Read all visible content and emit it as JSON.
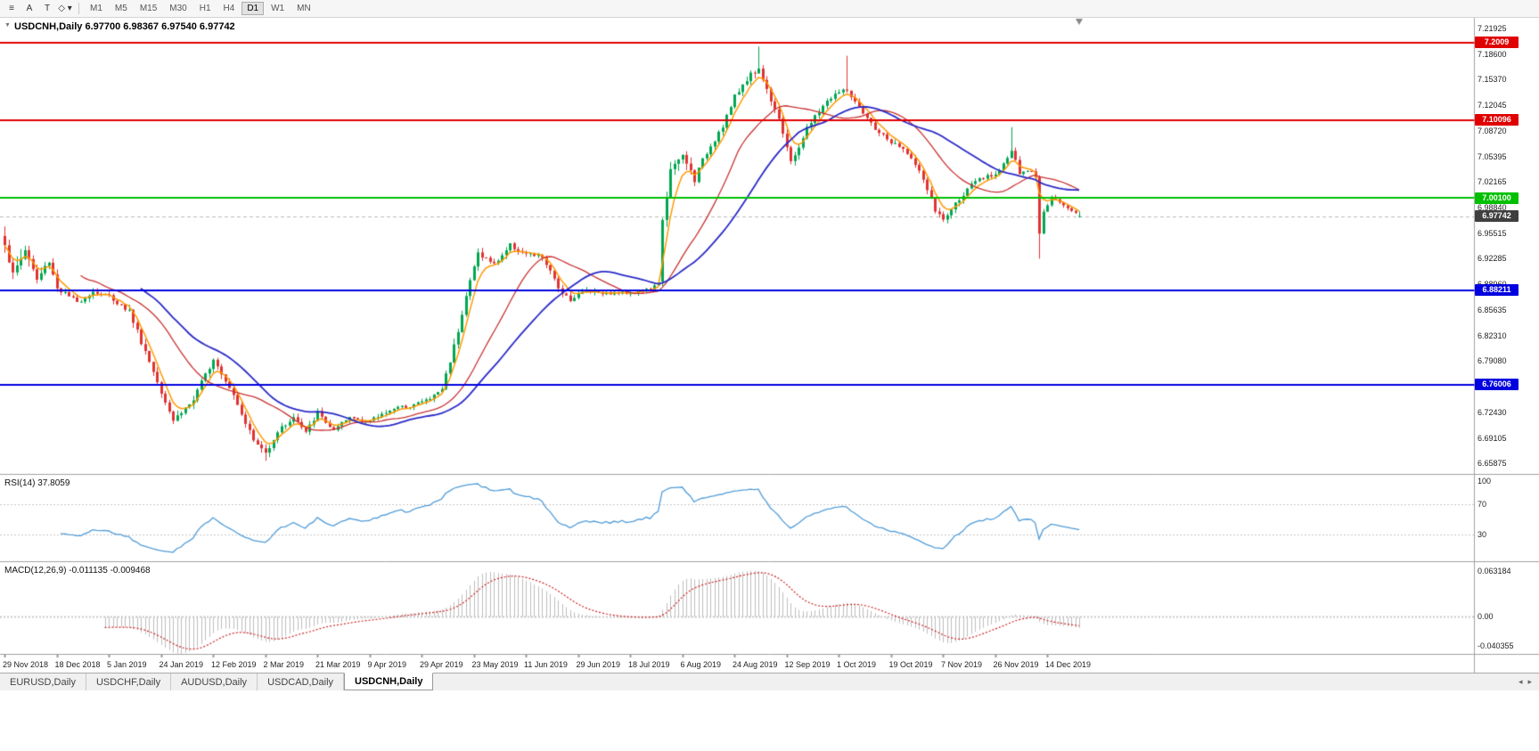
{
  "toolbar": {
    "icons": [
      {
        "name": "charts-menu-icon",
        "glyph": "≡"
      },
      {
        "name": "cursor-tool-icon",
        "glyph": "A"
      },
      {
        "name": "text-tool-icon",
        "glyph": "T"
      },
      {
        "name": "shapes-tool-icon",
        "glyph": "◇",
        "caret": "▾"
      }
    ],
    "timeframes": [
      "M1",
      "M5",
      "M15",
      "M30",
      "H1",
      "H4",
      "D1",
      "W1",
      "MN"
    ],
    "active_timeframe": "D1"
  },
  "chart": {
    "title": "USDCNH,Daily 6.97700 6.98367 6.97540 6.97742",
    "symbol": "USDCNH",
    "period": "Daily",
    "one_click_arrow": "▼"
  },
  "tabs": {
    "items": [
      "EURUSD,Daily",
      "USDCHF,Daily",
      "AUDUSD,Daily",
      "USDCAD,Daily",
      "USDCNH,Daily"
    ],
    "active": "USDCNH,Daily",
    "scroll_left": "◂",
    "scroll_right": "▸"
  },
  "chart_data": {
    "type": "candlestick",
    "symbol": "USDCNH",
    "timeframe": "Daily",
    "up_color": "#00a651",
    "down_color": "#e03232",
    "current_ohlc": {
      "open": 6.977,
      "high": 6.98367,
      "low": 6.9754,
      "close": 6.97742
    },
    "candles": 269,
    "price_range": {
      "top": 7.233,
      "bottom": 6.645
    },
    "y_axis_labels": [
      "7.21925",
      "7.18600",
      "7.15370",
      "7.12045",
      "7.08720",
      "7.05395",
      "7.02165",
      "6.98840",
      "6.95515",
      "6.92285",
      "6.88960",
      "6.85635",
      "6.82310",
      "6.79080",
      "6.75755",
      "6.72430",
      "6.69105",
      "6.65875"
    ],
    "x_tick_every": 13,
    "x_tick_labels": [
      "29 Nov 2018",
      "18 Dec 2018",
      "5 Jan 2019",
      "24 Jan 2019",
      "12 Feb 2019",
      "2 Mar 2019",
      "21 Mar 2019",
      "9 Apr 2019",
      "29 Apr 2019",
      "23 May 2019",
      "11 Jun 2019",
      "29 Jun 2019",
      "18 Jul 2019",
      "6 Aug 2019",
      "24 Aug 2019",
      "12 Sep 2019",
      "1 Oct 2019",
      "19 Oct 2019",
      "7 Nov 2019",
      "26 Nov 2019",
      "14 Dec 2019"
    ],
    "price_keyframes": [
      [
        0,
        6.945,
        0.03
      ],
      [
        2,
        6.9,
        0.028
      ],
      [
        5,
        6.935,
        0.024
      ],
      [
        8,
        6.895,
        0.02
      ],
      [
        11,
        6.92,
        0.016
      ],
      [
        13,
        6.885,
        0.013
      ],
      [
        18,
        6.866,
        0.011
      ],
      [
        22,
        6.88,
        0.011
      ],
      [
        26,
        6.874,
        0.011
      ],
      [
        31,
        6.855,
        0.013
      ],
      [
        36,
        6.79,
        0.015
      ],
      [
        42,
        6.715,
        0.015
      ],
      [
        47,
        6.74,
        0.013
      ],
      [
        52,
        6.795,
        0.015
      ],
      [
        57,
        6.748,
        0.013
      ],
      [
        62,
        6.688,
        0.013
      ],
      [
        65,
        6.672,
        0.013
      ],
      [
        68,
        6.7,
        0.011
      ],
      [
        72,
        6.718,
        0.01
      ],
      [
        75,
        6.698,
        0.01
      ],
      [
        78,
        6.724,
        0.01
      ],
      [
        82,
        6.7,
        0.011
      ],
      [
        86,
        6.718,
        0.01
      ],
      [
        91,
        6.713,
        0.009
      ],
      [
        96,
        6.728,
        0.008
      ],
      [
        101,
        6.733,
        0.008
      ],
      [
        106,
        6.742,
        0.008
      ],
      [
        109,
        6.755,
        0.011
      ],
      [
        112,
        6.81,
        0.016
      ],
      [
        115,
        6.875,
        0.015
      ],
      [
        118,
        6.93,
        0.013
      ],
      [
        122,
        6.915,
        0.011
      ],
      [
        126,
        6.94,
        0.011
      ],
      [
        130,
        6.928,
        0.01
      ],
      [
        134,
        6.925,
        0.01
      ],
      [
        138,
        6.885,
        0.011
      ],
      [
        141,
        6.87,
        0.01
      ],
      [
        145,
        6.882,
        0.009
      ],
      [
        150,
        6.878,
        0.008
      ],
      [
        156,
        6.879,
        0.008
      ],
      [
        161,
        6.883,
        0.008
      ],
      [
        163,
        6.89,
        0.009
      ],
      [
        164,
        6.975,
        0.018
      ],
      [
        166,
        7.035,
        0.02
      ],
      [
        169,
        7.055,
        0.018
      ],
      [
        172,
        7.025,
        0.016
      ],
      [
        175,
        7.06,
        0.015
      ],
      [
        179,
        7.095,
        0.015
      ],
      [
        182,
        7.13,
        0.015
      ],
      [
        185,
        7.155,
        0.014
      ],
      [
        188,
        7.168,
        0.014
      ],
      [
        190,
        7.14,
        0.013
      ],
      [
        193,
        7.105,
        0.013
      ],
      [
        196,
        7.045,
        0.013
      ],
      [
        200,
        7.09,
        0.012
      ],
      [
        204,
        7.12,
        0.011
      ],
      [
        207,
        7.135,
        0.011
      ],
      [
        210,
        7.14,
        0.012
      ],
      [
        213,
        7.115,
        0.011
      ],
      [
        217,
        7.09,
        0.01
      ],
      [
        221,
        7.072,
        0.01
      ],
      [
        225,
        7.06,
        0.01
      ],
      [
        229,
        7.025,
        0.011
      ],
      [
        232,
        6.985,
        0.011
      ],
      [
        234,
        6.972,
        0.011
      ],
      [
        238,
        7.0,
        0.01
      ],
      [
        242,
        7.022,
        0.009
      ],
      [
        247,
        7.032,
        0.009
      ],
      [
        250,
        7.052,
        0.011
      ],
      [
        251,
        7.062,
        0.011
      ],
      [
        253,
        7.032,
        0.01
      ],
      [
        256,
        7.036,
        0.008
      ],
      [
        257,
        7.028,
        0.009
      ],
      [
        258,
        6.958,
        0.014
      ],
      [
        259,
        6.985,
        0.009
      ],
      [
        261,
        7.002,
        0.008
      ],
      [
        264,
        6.992,
        0.007
      ],
      [
        266,
        6.985,
        0.007
      ],
      [
        268,
        6.97742,
        0.005
      ]
    ],
    "overrides": [
      {
        "i": 65,
        "l": 6.662
      },
      {
        "i": 164,
        "o": 6.893
      },
      {
        "i": 188,
        "h": 7.196
      },
      {
        "i": 210,
        "h": 7.184
      },
      {
        "i": 251,
        "h": 7.092
      },
      {
        "i": 258,
        "l": 6.9225
      },
      {
        "i": 268,
        "o": 6.977,
        "h": 6.98367,
        "l": 6.9754,
        "c": 6.97742
      }
    ],
    "h_lines": [
      {
        "price": 7.2009,
        "label": "7.2009",
        "color": "#e00000",
        "width": 2
      },
      {
        "price": 7.10096,
        "label": "7.10096",
        "color": "#e00000",
        "width": 2
      },
      {
        "price": 7.001,
        "label": "7.00100",
        "color": "#00c000",
        "width": 2
      },
      {
        "price": 6.88211,
        "label": "6.88211",
        "color": "#0000e0",
        "width": 2
      },
      {
        "price": 6.76006,
        "label": "6.76006",
        "color": "#0000e0",
        "width": 2
      }
    ],
    "current_price": {
      "price": 6.97742,
      "label": "6.97742",
      "color": "#3f3f3f"
    },
    "moving_averages": [
      {
        "period": 5,
        "type": "ema",
        "color": "#ff9900",
        "width": 1.5
      },
      {
        "period": 20,
        "type": "sma",
        "color": "#c83232",
        "width": 1.3
      },
      {
        "period": 35,
        "type": "sma",
        "color": "#2a2ac8",
        "width": 1.8
      }
    ],
    "indicators": [
      {
        "name": "rsi",
        "label": "RSI(14) 37.8059",
        "period": 14,
        "value": 37.8059,
        "levels": [
          70,
          30
        ],
        "axis_labels": [
          "100",
          "70",
          "30"
        ],
        "color": "#4f9bd8"
      },
      {
        "name": "macd",
        "label": "MACD(12,26,9) -0.011135 -0.009468",
        "fast": 12,
        "slow": 26,
        "signal": 9,
        "macd_value": -0.011135,
        "signal_value": -0.009468,
        "axis_labels": [
          "0.063184",
          "0.00",
          "-0.040355"
        ],
        "histogram_color": "#bdbdbd",
        "signal_color": "#cc2222"
      }
    ]
  }
}
